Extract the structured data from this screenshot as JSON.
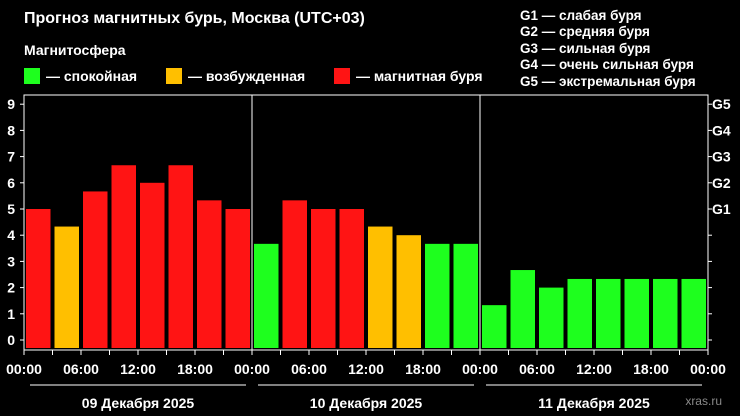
{
  "title": "Прогноз магнитных бурь, Москва (UTC+03)",
  "subtitle": "Магнитосфера",
  "legend": [
    {
      "label": "— спокойная",
      "color": "#1eff1e"
    },
    {
      "label": "— возбужденная",
      "color": "#ffbf00"
    },
    {
      "label": "— магнитная буря",
      "color": "#ff1414"
    }
  ],
  "storm_scale": [
    "G1 — слабая буря",
    "G2 — средняя буря",
    "G3 — сильная буря",
    "G4 — очень сильная буря",
    "G5 — экстремальная буря"
  ],
  "watermark": "xras.ru",
  "chart_data": {
    "type": "bar",
    "title": "Прогноз магнитных бурь, Москва (UTC+03)",
    "ylim": [
      0,
      9
    ],
    "y_ticks": [
      "0",
      "1",
      "2",
      "3",
      "4",
      "5",
      "6",
      "7",
      "8",
      "9"
    ],
    "right_ticks": [
      {
        "label": "G1",
        "value": 5
      },
      {
        "label": "G2",
        "value": 6
      },
      {
        "label": "G3",
        "value": 7
      },
      {
        "label": "G4",
        "value": 8
      },
      {
        "label": "G5",
        "value": 9
      }
    ],
    "x_tick_labels": [
      "00:00",
      "06:00",
      "12:00",
      "18:00",
      "00:00",
      "06:00",
      "12:00",
      "18:00",
      "00:00",
      "06:00",
      "12:00",
      "18:00",
      "00:00"
    ],
    "days": [
      "09 Декабря 2025",
      "10 Декабря 2025",
      "11 Декабря 2025"
    ],
    "colors": {
      "quiet": "#1eff1e",
      "active": "#ffbf00",
      "storm": "#ff1414"
    },
    "values": [
      5.0,
      4.33,
      5.67,
      6.67,
      6.0,
      6.67,
      5.33,
      5.0,
      3.67,
      5.33,
      5.0,
      5.0,
      4.33,
      4.0,
      3.67,
      3.67,
      1.33,
      2.67,
      2.0,
      2.33,
      2.33,
      2.33,
      2.33,
      2.33
    ],
    "levels": [
      "storm",
      "active",
      "storm",
      "storm",
      "storm",
      "storm",
      "storm",
      "storm",
      "quiet",
      "storm",
      "storm",
      "storm",
      "active",
      "active",
      "quiet",
      "quiet",
      "quiet",
      "quiet",
      "quiet",
      "quiet",
      "quiet",
      "quiet",
      "quiet",
      "quiet"
    ]
  }
}
